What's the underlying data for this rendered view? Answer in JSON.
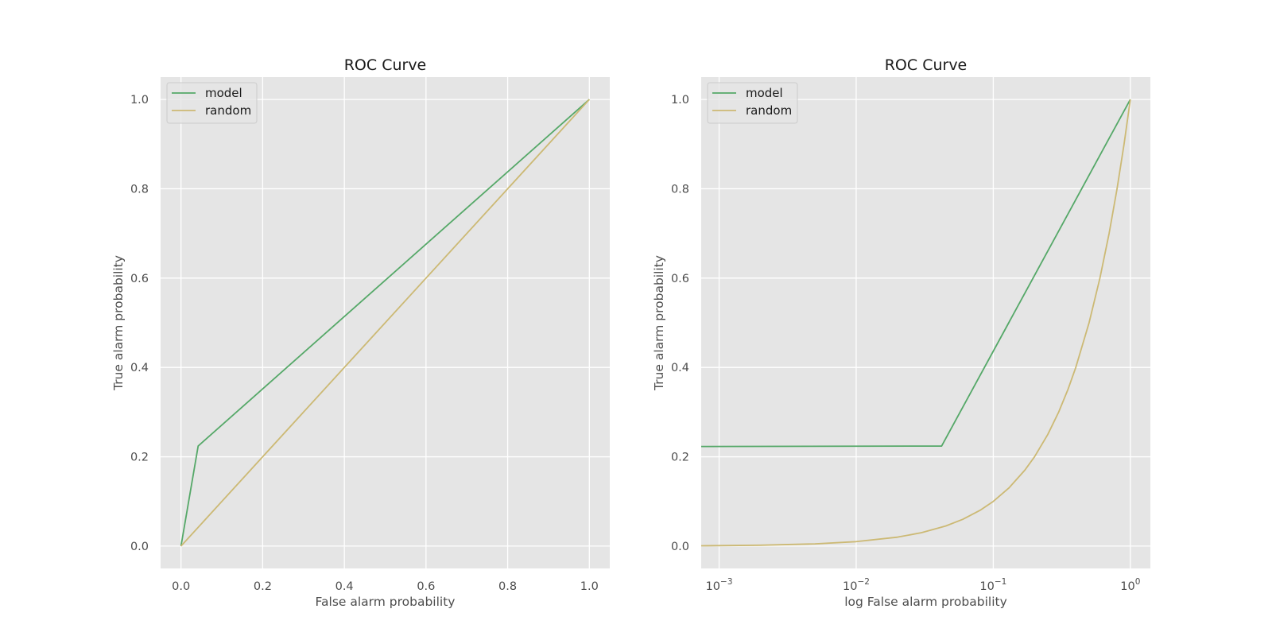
{
  "chart_data": [
    {
      "type": "line",
      "title": "ROC Curve",
      "xlabel": "False alarm probability",
      "ylabel": "True alarm probability",
      "xscale": "linear",
      "xlim": [
        -0.05,
        1.05
      ],
      "ylim": [
        -0.05,
        1.05
      ],
      "xticks": [
        0.0,
        0.2,
        0.4,
        0.6,
        0.8,
        1.0
      ],
      "xtick_labels": [
        "0.0",
        "0.2",
        "0.4",
        "0.6",
        "0.8",
        "1.0"
      ],
      "yticks": [
        0.0,
        0.2,
        0.4,
        0.6,
        0.8,
        1.0
      ],
      "ytick_labels": [
        "0.0",
        "0.2",
        "0.4",
        "0.6",
        "0.8",
        "1.0"
      ],
      "grid": true,
      "legend": "top-left",
      "series": [
        {
          "name": "model",
          "color": "#55a868",
          "x": [
            0.0,
            0.042,
            1.0
          ],
          "y": [
            0.0,
            0.224,
            1.0
          ]
        },
        {
          "name": "random",
          "color": "#ccb974",
          "x": [
            0.0,
            1.0
          ],
          "y": [
            0.0,
            1.0
          ]
        }
      ]
    },
    {
      "type": "line",
      "title": "ROC Curve",
      "xlabel": "log False alarm probability",
      "ylabel": "True alarm probability",
      "xscale": "log",
      "xlim": [
        0.00074,
        1.4
      ],
      "ylim": [
        -0.05,
        1.05
      ],
      "xticks": [
        0.001,
        0.01,
        0.1,
        1
      ],
      "xtick_labels": [
        {
          "base": "10",
          "exp": "−3"
        },
        {
          "base": "10",
          "exp": "−2"
        },
        {
          "base": "10",
          "exp": "−1"
        },
        {
          "base": "10",
          "exp": "0"
        }
      ],
      "yticks": [
        0.0,
        0.2,
        0.4,
        0.6,
        0.8,
        1.0
      ],
      "ytick_labels": [
        "0.0",
        "0.2",
        "0.4",
        "0.6",
        "0.8",
        "1.0"
      ],
      "grid": true,
      "legend": "top-left",
      "series": [
        {
          "name": "model",
          "color": "#55a868",
          "x": [
            0.00074,
            0.042,
            1.0
          ],
          "y": [
            0.223,
            0.224,
            1.0
          ]
        },
        {
          "name": "random",
          "color": "#ccb974",
          "x": [
            0.00074,
            0.002,
            0.005,
            0.01,
            0.02,
            0.03,
            0.045,
            0.06,
            0.08,
            0.1,
            0.13,
            0.17,
            0.2,
            0.25,
            0.3,
            0.35,
            0.4,
            0.5,
            0.6,
            0.7,
            0.8,
            0.9,
            1.0
          ],
          "y": [
            0.00074,
            0.002,
            0.005,
            0.01,
            0.02,
            0.03,
            0.045,
            0.06,
            0.08,
            0.1,
            0.13,
            0.17,
            0.2,
            0.25,
            0.3,
            0.35,
            0.4,
            0.5,
            0.6,
            0.7,
            0.8,
            0.9,
            1.0
          ]
        }
      ]
    }
  ]
}
